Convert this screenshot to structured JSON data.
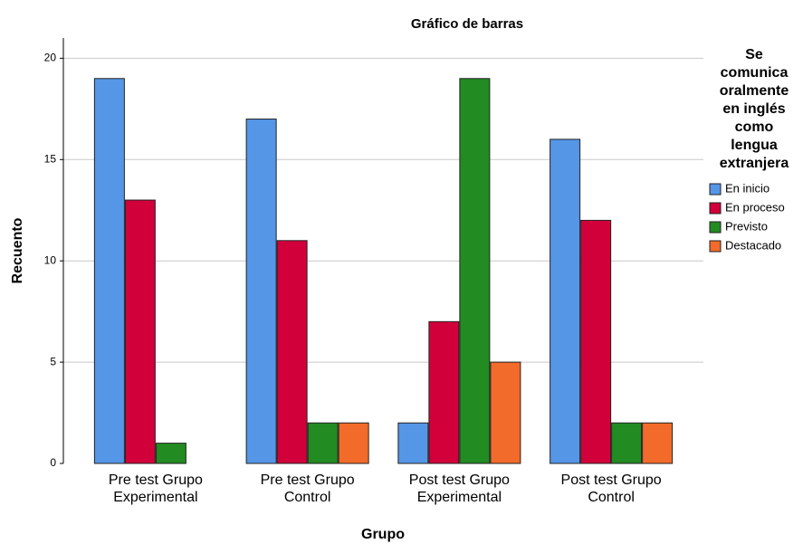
{
  "chart_data": {
    "type": "bar",
    "title": "Gráfico de barras",
    "x_label": "Grupo",
    "y_label": "Recuento",
    "legend_title": [
      "Se",
      "comunica",
      "oralmente",
      "en inglés",
      "como",
      "lengua",
      "extranjera"
    ],
    "legend_position": "right",
    "categories": [
      [
        "Pre test Grupo",
        "Experimental"
      ],
      [
        "Pre test Grupo",
        "Control"
      ],
      [
        "Post test Grupo",
        "Experimental"
      ],
      [
        "Post test Grupo",
        "Control"
      ]
    ],
    "series": [
      {
        "name": "En inicio",
        "color": "#5596e6",
        "values": [
          19,
          17,
          2,
          16
        ]
      },
      {
        "name": "En proceso",
        "color": "#d2003a",
        "values": [
          13,
          11,
          7,
          12
        ]
      },
      {
        "name": "Previsto",
        "color": "#228b22",
        "values": [
          1,
          2,
          19,
          2
        ]
      },
      {
        "name": "Destacado",
        "color": "#f26b2a",
        "values": [
          0,
          2,
          5,
          2
        ]
      }
    ],
    "ylim": [
      0,
      21
    ],
    "yticks": [
      0,
      5,
      10,
      15,
      20
    ],
    "grid": true
  }
}
